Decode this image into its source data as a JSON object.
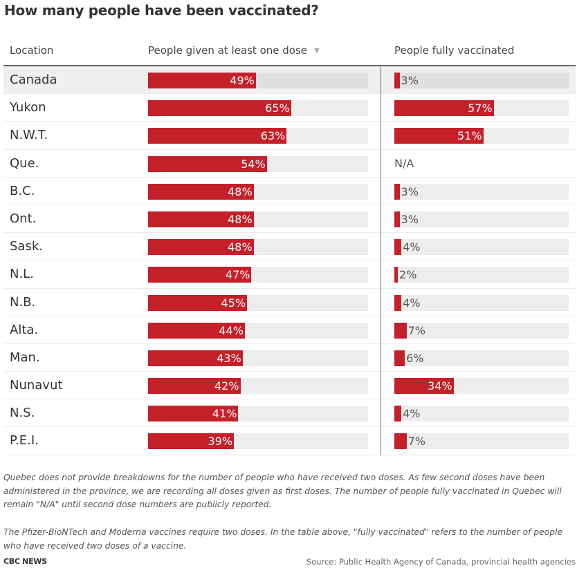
{
  "chart_data": {
    "type": "table",
    "title": "How many people have been vaccinated?",
    "columns": [
      "Location",
      "People given at least one dose",
      "People fully vaccinated"
    ],
    "sort": {
      "column": "People given at least one dose",
      "direction": "descending",
      "indicator": "▼"
    },
    "scale_max": 100,
    "rows": [
      {
        "location": "Canada",
        "first_dose": 49,
        "fully": 3,
        "fully_label": "3%",
        "first_label": "49%"
      },
      {
        "location": "Yukon",
        "first_dose": 65,
        "fully": 57,
        "fully_label": "57%",
        "first_label": "65%"
      },
      {
        "location": "N.W.T.",
        "first_dose": 63,
        "fully": 51,
        "fully_label": "51%",
        "first_label": "63%"
      },
      {
        "location": "Que.",
        "first_dose": 54,
        "fully": null,
        "fully_label": "N/A",
        "first_label": "54%"
      },
      {
        "location": "B.C.",
        "first_dose": 48,
        "fully": 3,
        "fully_label": "3%",
        "first_label": "48%"
      },
      {
        "location": "Ont.",
        "first_dose": 48,
        "fully": 3,
        "fully_label": "3%",
        "first_label": "48%"
      },
      {
        "location": "Sask.",
        "first_dose": 48,
        "fully": 4,
        "fully_label": "4%",
        "first_label": "48%"
      },
      {
        "location": "N.L.",
        "first_dose": 47,
        "fully": 2,
        "fully_label": "2%",
        "first_label": "47%"
      },
      {
        "location": "N.B.",
        "first_dose": 45,
        "fully": 4,
        "fully_label": "4%",
        "first_label": "45%"
      },
      {
        "location": "Alta.",
        "first_dose": 44,
        "fully": 7,
        "fully_label": "7%",
        "first_label": "44%"
      },
      {
        "location": "Man.",
        "first_dose": 43,
        "fully": 6,
        "fully_label": "6%",
        "first_label": "43%"
      },
      {
        "location": "Nunavut",
        "first_dose": 42,
        "fully": 34,
        "fully_label": "34%",
        "first_label": "42%"
      },
      {
        "location": "N.S.",
        "first_dose": 41,
        "fully": 4,
        "fully_label": "4%",
        "first_label": "41%"
      },
      {
        "location": "P.E.I.",
        "first_dose": 39,
        "fully": 7,
        "fully_label": "7%",
        "first_label": "39%"
      }
    ],
    "colors": {
      "bar": "#c4202a",
      "track": "#ededed",
      "highlight_row": "#efefef"
    }
  },
  "notes": [
    "Quebec does not provide breakdowns for the number of people who have received two doses. As few second doses have been administered in the province, we are recording all doses given as first doses. The number of people fully vaccinated in Quebec will remain \"N/A\" until second dose numbers are publicly reported.",
    "The Pfizer-BioNTech and Moderna vaccines require two doses. In the table above, \"fully vaccinated\" refers to the number of people who have received two doses of a vaccine."
  ],
  "footer": {
    "brand": "CBC NEWS",
    "source": "Source: Public Health Agency of Canada, provincial health agencies"
  }
}
